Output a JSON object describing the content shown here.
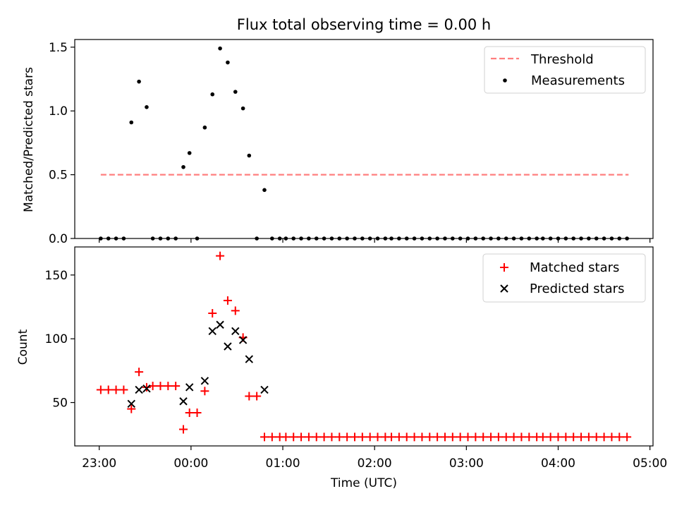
{
  "figure": {
    "title": "Flux total observing time = 0.00 h",
    "xlabel": "Time (UTC)",
    "x_tick_labels": [
      "23:00",
      "00:00",
      "01:00",
      "02:00",
      "03:00",
      "04:00",
      "05:00"
    ]
  },
  "chart_data": [
    {
      "type": "scatter",
      "panel": "top",
      "ylabel": "Matched/Predicted stars",
      "ylim": [
        0,
        1.56
      ],
      "yticks": [
        0.0,
        0.5,
        1.0,
        1.5
      ],
      "ytick_labels": [
        "0.0",
        "0.5",
        "1.0",
        "1.5"
      ],
      "x_unit": "minutes relative to 23:00 UTC",
      "xlim": [
        -16,
        362
      ],
      "xticks": [
        0,
        60,
        120,
        180,
        240,
        300,
        360
      ],
      "grid": false,
      "legend_position": "upper right",
      "series": [
        {
          "name": "Threshold",
          "kind": "line",
          "style": "dashed",
          "color": "#ff7f7f",
          "x": [
            1,
            346
          ],
          "y": [
            0.5,
            0.5
          ]
        },
        {
          "name": "Measurements",
          "kind": "scatter",
          "marker": "dot",
          "color": "#000000",
          "x": [
            1,
            6,
            11,
            16,
            21,
            26,
            31,
            35,
            40,
            45,
            50,
            55,
            59,
            64,
            69,
            74,
            79,
            84,
            89,
            94,
            98,
            103,
            108,
            113,
            118,
            122,
            127,
            132,
            137,
            142,
            147,
            152,
            157,
            162,
            167,
            172,
            177,
            182,
            187,
            191,
            196,
            201,
            206,
            211,
            216,
            221,
            226,
            231,
            236,
            241,
            246,
            251,
            256,
            261,
            266,
            271,
            276,
            281,
            286,
            290,
            295,
            300,
            305,
            310,
            315,
            320,
            325,
            330,
            335,
            340,
            345
          ],
          "y": [
            0,
            0,
            0,
            0,
            0.91,
            1.23,
            1.03,
            0,
            0,
            0,
            0,
            0.56,
            0.67,
            0,
            0.87,
            1.13,
            1.49,
            1.38,
            1.15,
            1.02,
            0.65,
            0,
            0.38,
            0,
            0,
            0,
            0,
            0,
            0,
            0,
            0,
            0,
            0,
            0,
            0,
            0,
            0,
            0,
            0,
            0,
            0,
            0,
            0,
            0,
            0,
            0,
            0,
            0,
            0,
            0,
            0,
            0,
            0,
            0,
            0,
            0,
            0,
            0,
            0,
            0,
            0,
            0,
            0,
            0,
            0,
            0,
            0,
            0,
            0,
            0,
            0
          ]
        }
      ]
    },
    {
      "type": "scatter",
      "panel": "bottom",
      "ylabel": "Count",
      "ylim": [
        16,
        172
      ],
      "yticks": [
        50,
        100,
        150
      ],
      "ytick_labels": [
        "50",
        "100",
        "150"
      ],
      "x_unit": "minutes relative to 23:00 UTC",
      "xlim": [
        -16,
        362
      ],
      "xticks": [
        0,
        60,
        120,
        180,
        240,
        300,
        360
      ],
      "grid": false,
      "legend_position": "upper right",
      "series": [
        {
          "name": "Matched stars",
          "marker": "plus",
          "color": "#ff0000",
          "x": [
            1,
            6,
            11,
            16,
            21,
            26,
            31,
            35,
            40,
            45,
            50,
            55,
            59,
            64,
            69,
            74,
            79,
            84,
            89,
            94,
            98,
            103,
            108,
            113,
            118,
            122,
            127,
            132,
            137,
            142,
            147,
            152,
            157,
            162,
            167,
            172,
            177,
            182,
            187,
            191,
            196,
            201,
            206,
            211,
            216,
            221,
            226,
            231,
            236,
            241,
            246,
            251,
            256,
            261,
            266,
            271,
            276,
            281,
            286,
            290,
            295,
            300,
            305,
            310,
            315,
            320,
            325,
            330,
            335,
            340,
            345
          ],
          "y": [
            60,
            60,
            60,
            60,
            45,
            74,
            62,
            63,
            63,
            63,
            63,
            29,
            42,
            42,
            59,
            120,
            165,
            130,
            122,
            101,
            55,
            55,
            23,
            23,
            23,
            23,
            23,
            23,
            23,
            23,
            23,
            23,
            23,
            23,
            23,
            23,
            23,
            23,
            23,
            23,
            23,
            23,
            23,
            23,
            23,
            23,
            23,
            23,
            23,
            23,
            23,
            23,
            23,
            23,
            23,
            23,
            23,
            23,
            23,
            23,
            23,
            23,
            23,
            23,
            23,
            23,
            23,
            23,
            23,
            23,
            23
          ]
        },
        {
          "name": "Predicted stars",
          "marker": "x",
          "color": "#000000",
          "x": [
            21,
            26,
            31,
            55,
            59,
            69,
            74,
            79,
            84,
            89,
            94,
            98,
            108
          ],
          "y": [
            49,
            60,
            61,
            51,
            62,
            67,
            106,
            111,
            94,
            106,
            99,
            84,
            60
          ]
        }
      ]
    }
  ]
}
